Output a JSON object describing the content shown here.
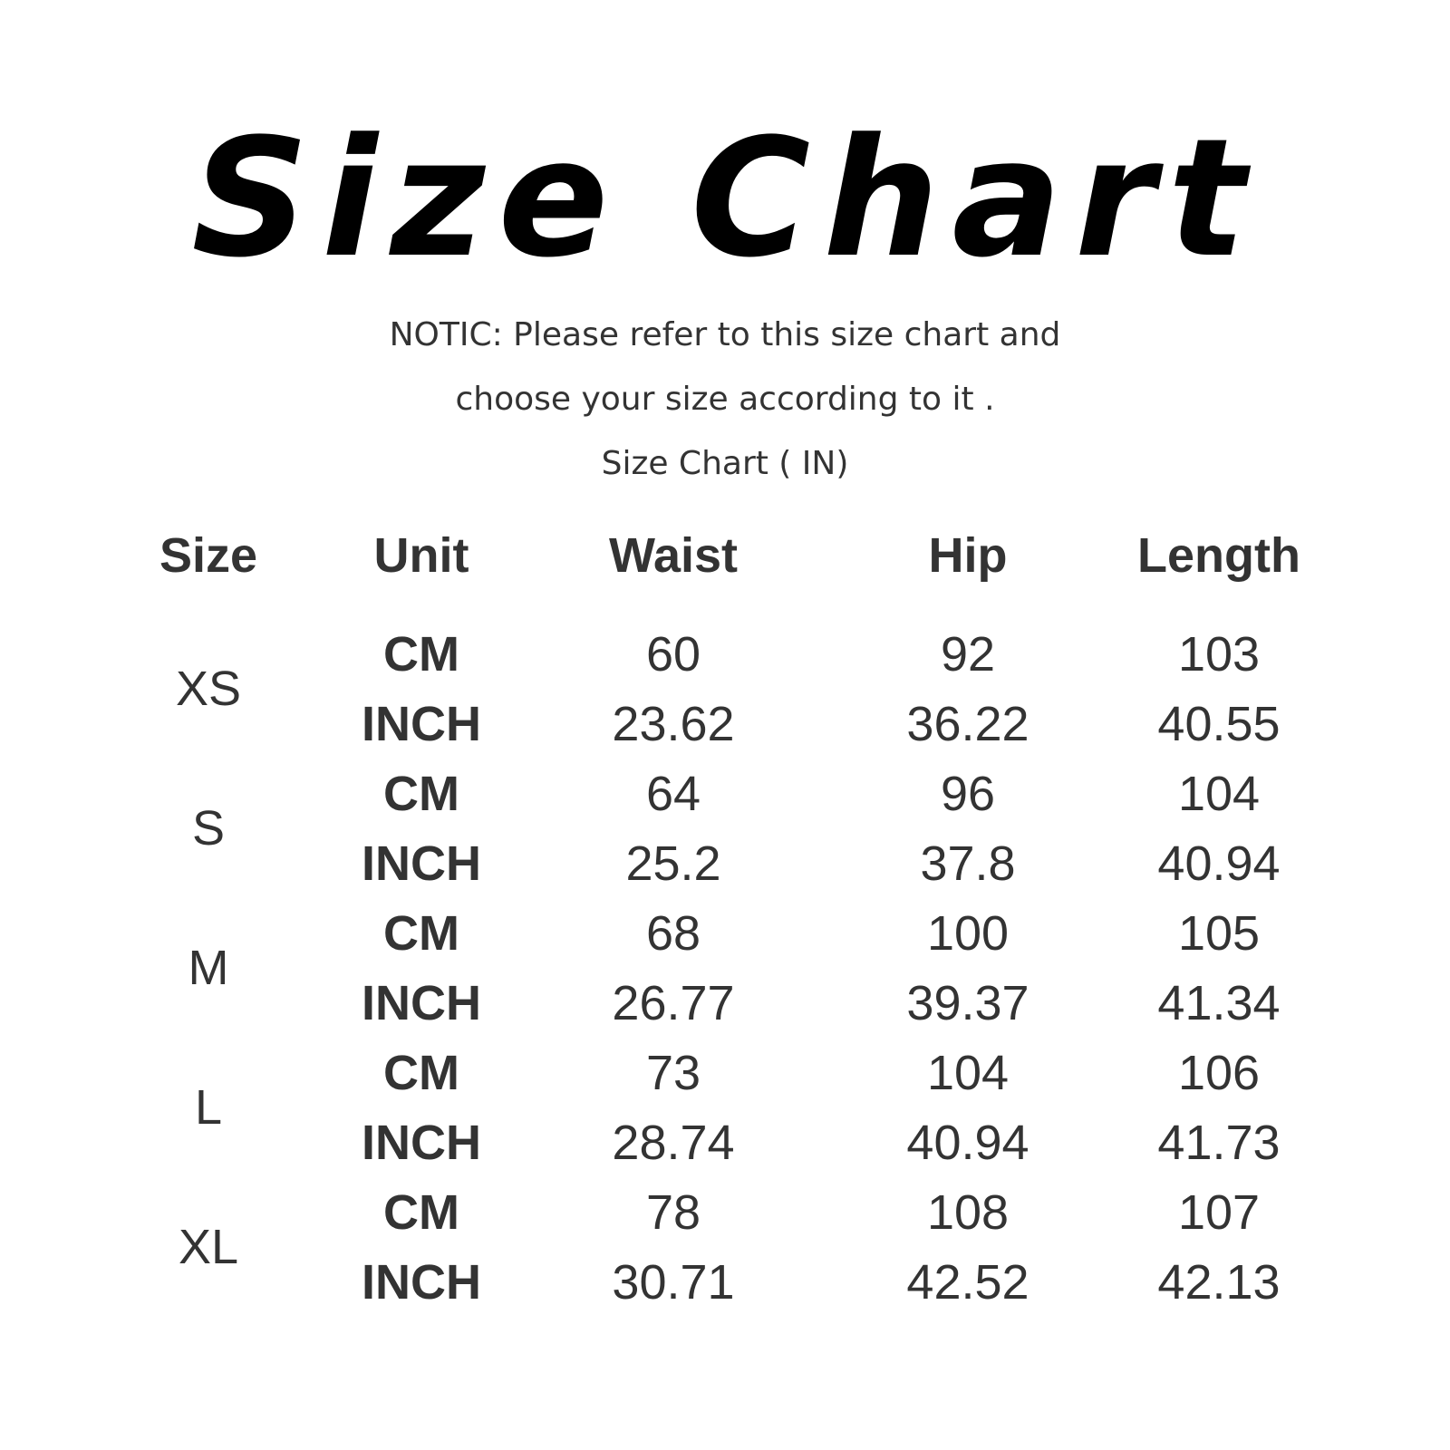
{
  "title": "Size Chart",
  "notice_line1": "NOTIC: Please refer to this size chart and",
  "notice_line2": "choose your size according to it .",
  "subtitle": "Size Chart ( IN)",
  "table": {
    "headers": [
      "Size",
      "Unit",
      "Waist",
      "Hip",
      "Length"
    ],
    "rows": [
      {
        "size": "XS",
        "cm": {
          "unit": "CM",
          "waist": "60",
          "hip": "92",
          "length": "103"
        },
        "inch": {
          "unit": "INCH",
          "waist": "23.62",
          "hip": "36.22",
          "length": "40.55"
        }
      },
      {
        "size": "S",
        "cm": {
          "unit": "CM",
          "waist": "64",
          "hip": "96",
          "length": "104"
        },
        "inch": {
          "unit": "INCH",
          "waist": "25.2",
          "hip": "37.8",
          "length": "40.94"
        }
      },
      {
        "size": "M",
        "cm": {
          "unit": "CM",
          "waist": "68",
          "hip": "100",
          "length": "105"
        },
        "inch": {
          "unit": "INCH",
          "waist": "26.77",
          "hip": "39.37",
          "length": "41.34"
        }
      },
      {
        "size": "L",
        "cm": {
          "unit": "CM",
          "waist": "73",
          "hip": "104",
          "length": "106"
        },
        "inch": {
          "unit": "INCH",
          "waist": "28.74",
          "hip": "40.94",
          "length": "41.73"
        }
      },
      {
        "size": "XL",
        "cm": {
          "unit": "CM",
          "waist": "78",
          "hip": "108",
          "length": "107"
        },
        "inch": {
          "unit": "INCH",
          "waist": "30.71",
          "hip": "42.52",
          "length": "42.13"
        }
      }
    ]
  }
}
